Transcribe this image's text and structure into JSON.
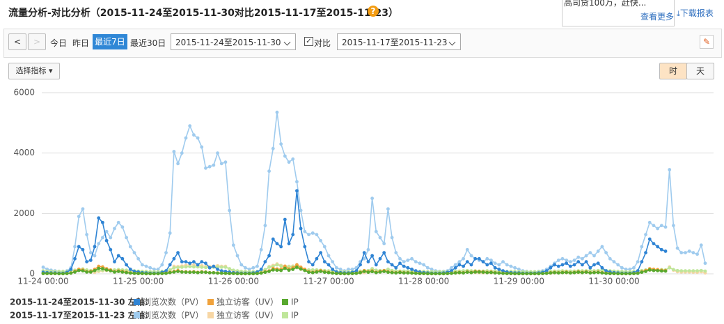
{
  "header": {
    "title": "流量分析-对比分析（2015-11-24至2015-11-30对比2015-11-17至2015-11-23）",
    "help": "?"
  },
  "promo": {
    "text": "高司贷100万，赶快...",
    "more": "查看更多",
    "download": "下载报表"
  },
  "toolbar": {
    "prev": "<",
    "next": ">",
    "today": "今日",
    "yesterday": "昨日",
    "last7": "最近7日",
    "last30": "最近30日",
    "range": "2015-11-24至2015-11-30",
    "compare_label": "对比",
    "compare_range": "2015-11-17至2015-11-23",
    "metrics": "选择指标",
    "hour": "时",
    "day": "天"
  },
  "chart_data": {
    "type": "line",
    "ylim": [
      0,
      6000
    ],
    "yticks": [
      0,
      2000,
      4000,
      6000
    ],
    "grid": true,
    "legend_groups": [
      "2015-11-24至2015-11-30 左轴：",
      "2015-11-17至2015-11-23 左轴："
    ],
    "categories": [
      "11-24 00:00",
      null,
      null,
      null,
      null,
      null,
      null,
      null,
      null,
      null,
      null,
      null,
      null,
      null,
      null,
      null,
      null,
      null,
      null,
      null,
      null,
      null,
      null,
      null,
      "11-25 00:00",
      null,
      null,
      null,
      null,
      null,
      null,
      null,
      null,
      null,
      null,
      null,
      null,
      null,
      null,
      null,
      null,
      null,
      null,
      null,
      null,
      null,
      null,
      null,
      "11-26 00:00",
      null,
      null,
      null,
      null,
      null,
      null,
      null,
      null,
      null,
      null,
      null,
      null,
      null,
      null,
      null,
      null,
      null,
      null,
      null,
      null,
      null,
      null,
      null,
      "11-27 00:00",
      null,
      null,
      null,
      null,
      null,
      null,
      null,
      null,
      null,
      null,
      null,
      null,
      null,
      null,
      null,
      null,
      null,
      null,
      null,
      null,
      null,
      null,
      null,
      "11-28 00:00",
      null,
      null,
      null,
      null,
      null,
      null,
      null,
      null,
      null,
      null,
      null,
      null,
      null,
      null,
      null,
      null,
      null,
      null,
      null,
      null,
      null,
      null,
      null,
      "11-29 00:00",
      null,
      null,
      null,
      null,
      null,
      null,
      null,
      null,
      null,
      null,
      null,
      null,
      null,
      null,
      null,
      null,
      null,
      null,
      null,
      null,
      null,
      null,
      null,
      "11-30 00:00",
      null,
      null,
      null,
      null,
      null,
      null,
      null,
      null,
      null,
      null,
      null,
      null,
      null,
      null,
      null,
      null,
      null,
      null,
      null,
      null,
      null,
      null,
      null
    ],
    "series": [
      {
        "name": "浏览次数（PV）",
        "color": "#2f84d4",
        "values": [
          50,
          40,
          30,
          30,
          20,
          20,
          50,
          150,
          500,
          900,
          800,
          400,
          450,
          900,
          1850,
          1700,
          1100,
          800,
          400,
          600,
          500,
          300,
          150,
          80,
          60,
          40,
          30,
          20,
          20,
          20,
          50,
          100,
          300,
          500,
          700,
          400,
          400,
          350,
          400,
          300,
          400,
          350,
          200,
          250,
          150,
          100,
          80,
          60,
          40,
          30,
          20,
          20,
          20,
          30,
          60,
          150,
          400,
          600,
          1150,
          1000,
          900,
          1800,
          1000,
          1300,
          2750,
          1500,
          900,
          400,
          300,
          500,
          700,
          400,
          300,
          150,
          60,
          40,
          30,
          30,
          50,
          100,
          300,
          700,
          400,
          600,
          300,
          500,
          700,
          400,
          300,
          200,
          350,
          250,
          200,
          150,
          100,
          60,
          40,
          30,
          20,
          20,
          20,
          30,
          50,
          100,
          200,
          300,
          250,
          400,
          300,
          500,
          500,
          400,
          300,
          350,
          200,
          150,
          100,
          60,
          40,
          30,
          30,
          20,
          20,
          20,
          20,
          30,
          50,
          100,
          200,
          300,
          250,
          300,
          350,
          250,
          300,
          400,
          300,
          400,
          200,
          300,
          350,
          200,
          100,
          60,
          40,
          30,
          20,
          20,
          20,
          40,
          100,
          400,
          700,
          1150,
          1000,
          900,
          800,
          750,
          null,
          null,
          null,
          null,
          null,
          null,
          null,
          null,
          null,
          null
        ]
      },
      {
        "name": "独立访客（UV）",
        "color": "#f0a23c",
        "values": [
          10,
          10,
          10,
          10,
          5,
          5,
          10,
          30,
          80,
          150,
          130,
          70,
          80,
          150,
          250,
          230,
          170,
          130,
          70,
          100,
          80,
          50,
          30,
          15,
          10,
          10,
          5,
          5,
          5,
          5,
          10,
          20,
          50,
          80,
          110,
          70,
          70,
          60,
          70,
          50,
          70,
          60,
          40,
          40,
          30,
          20,
          15,
          10,
          10,
          5,
          5,
          5,
          5,
          5,
          10,
          30,
          70,
          100,
          180,
          160,
          150,
          250,
          160,
          200,
          300,
          220,
          150,
          70,
          50,
          80,
          110,
          70,
          50,
          30,
          10,
          10,
          5,
          5,
          10,
          20,
          50,
          110,
          70,
          100,
          50,
          80,
          110,
          70,
          50,
          40,
          60,
          40,
          40,
          30,
          20,
          10,
          10,
          5,
          5,
          5,
          5,
          5,
          10,
          20,
          40,
          50,
          40,
          70,
          50,
          80,
          80,
          70,
          50,
          60,
          40,
          30,
          20,
          10,
          10,
          5,
          5,
          5,
          5,
          5,
          5,
          5,
          10,
          20,
          40,
          50,
          40,
          50,
          60,
          40,
          50,
          70,
          50,
          70,
          40,
          50,
          60,
          40,
          20,
          10,
          10,
          5,
          5,
          5,
          5,
          10,
          20,
          70,
          110,
          170,
          150,
          140,
          120,
          110,
          null,
          null,
          null,
          null,
          null,
          null,
          null,
          null,
          null,
          null
        ]
      },
      {
        "name": "IP",
        "color": "#58a82e",
        "values": [
          10,
          10,
          10,
          10,
          5,
          5,
          10,
          25,
          60,
          110,
          100,
          60,
          60,
          110,
          180,
          170,
          130,
          100,
          60,
          80,
          60,
          40,
          25,
          15,
          10,
          10,
          5,
          5,
          5,
          5,
          10,
          15,
          40,
          60,
          80,
          60,
          55,
          50,
          55,
          40,
          55,
          50,
          35,
          35,
          25,
          20,
          15,
          10,
          10,
          5,
          5,
          5,
          5,
          5,
          10,
          25,
          55,
          80,
          130,
          120,
          110,
          180,
          120,
          150,
          220,
          160,
          110,
          55,
          40,
          60,
          80,
          55,
          40,
          25,
          10,
          10,
          5,
          5,
          10,
          15,
          40,
          80,
          55,
          75,
          40,
          60,
          80,
          55,
          40,
          30,
          45,
          30,
          30,
          25,
          15,
          10,
          10,
          5,
          5,
          5,
          5,
          5,
          10,
          15,
          30,
          40,
          30,
          55,
          40,
          60,
          60,
          55,
          40,
          45,
          30,
          25,
          15,
          10,
          10,
          5,
          5,
          5,
          5,
          5,
          5,
          5,
          10,
          15,
          30,
          40,
          30,
          40,
          45,
          30,
          40,
          55,
          40,
          55,
          30,
          40,
          45,
          30,
          15,
          10,
          10,
          5,
          5,
          5,
          5,
          10,
          15,
          55,
          80,
          130,
          110,
          105,
          95,
          90,
          null,
          null,
          null,
          null,
          null,
          null,
          null,
          null,
          null,
          null
        ]
      },
      {
        "name": "浏览次数（PV）",
        "color": "#9fcbee",
        "values": [
          220,
          150,
          120,
          100,
          80,
          60,
          100,
          200,
          900,
          1900,
          2150,
          1300,
          700,
          600,
          1000,
          1200,
          1400,
          1200,
          1500,
          1700,
          1550,
          1200,
          900,
          700,
          500,
          300,
          250,
          200,
          150,
          150,
          300,
          700,
          1350,
          4050,
          3650,
          4000,
          4500,
          4900,
          4600,
          4500,
          4200,
          3500,
          3550,
          3600,
          4000,
          3650,
          3700,
          2100,
          950,
          600,
          300,
          200,
          150,
          200,
          250,
          800,
          1600,
          3400,
          4150,
          5350,
          4300,
          3900,
          3700,
          3800,
          3050,
          2100,
          1400,
          1300,
          1350,
          1300,
          1100,
          900,
          600,
          400,
          200,
          150,
          100,
          150,
          150,
          200,
          400,
          500,
          800,
          2500,
          1400,
          1200,
          1000,
          2150,
          1200,
          700,
          500,
          400,
          450,
          500,
          400,
          350,
          300,
          200,
          150,
          100,
          80,
          80,
          100,
          200,
          300,
          400,
          500,
          800,
          600,
          500,
          450,
          400,
          500,
          450,
          350,
          300,
          400,
          300,
          250,
          200,
          150,
          100,
          80,
          60,
          60,
          80,
          100,
          150,
          250,
          350,
          450,
          500,
          450,
          400,
          450,
          550,
          500,
          600,
          700,
          600,
          750,
          900,
          700,
          500,
          400,
          300,
          200,
          150,
          150,
          200,
          400,
          900,
          1300,
          1700,
          1600,
          1500,
          1600,
          1550,
          3450,
          1600,
          850,
          700,
          700,
          750,
          700,
          650,
          950,
          350
        ]
      },
      {
        "name": "独立访客（UV）",
        "color": "#f7d6a4",
        "values": [
          20,
          15,
          10,
          10,
          10,
          10,
          10,
          20,
          70,
          140,
          160,
          100,
          60,
          50,
          80,
          100,
          110,
          100,
          120,
          130,
          120,
          90,
          70,
          50,
          40,
          25,
          20,
          20,
          15,
          15,
          25,
          50,
          100,
          250,
          240,
          260,
          280,
          300,
          290,
          280,
          270,
          240,
          240,
          250,
          270,
          250,
          250,
          160,
          80,
          50,
          25,
          20,
          15,
          20,
          20,
          60,
          120,
          240,
          280,
          330,
          280,
          260,
          250,
          260,
          210,
          150,
          110,
          100,
          100,
          100,
          90,
          70,
          50,
          30,
          20,
          15,
          10,
          15,
          15,
          20,
          30,
          40,
          60,
          170,
          100,
          90,
          80,
          150,
          90,
          50,
          40,
          30,
          35,
          40,
          30,
          30,
          25,
          20,
          15,
          10,
          10,
          10,
          10,
          20,
          25,
          30,
          40,
          60,
          50,
          40,
          35,
          30,
          40,
          35,
          30,
          25,
          30,
          25,
          20,
          20,
          15,
          10,
          10,
          10,
          10,
          10,
          10,
          15,
          20,
          30,
          35,
          40,
          35,
          30,
          35,
          40,
          40,
          45,
          50,
          45,
          55,
          65,
          50,
          40,
          30,
          25,
          20,
          15,
          15,
          20,
          30,
          70,
          100,
          120,
          115,
          110,
          115,
          110,
          230,
          120,
          70,
          60,
          60,
          60,
          55,
          50,
          70,
          30
        ]
      },
      {
        "name": "IP",
        "color": "#bfe69a",
        "values": [
          100,
          90,
          80,
          80,
          80,
          80,
          80,
          100,
          120,
          150,
          160,
          130,
          110,
          100,
          110,
          120,
          130,
          120,
          130,
          140,
          130,
          120,
          110,
          100,
          90,
          80,
          80,
          70,
          70,
          70,
          80,
          100,
          130,
          200,
          210,
          220,
          230,
          240,
          230,
          230,
          220,
          210,
          210,
          220,
          230,
          220,
          220,
          170,
          120,
          100,
          80,
          80,
          70,
          70,
          80,
          100,
          140,
          220,
          250,
          300,
          260,
          240,
          230,
          240,
          200,
          160,
          140,
          130,
          130,
          130,
          120,
          110,
          100,
          90,
          80,
          70,
          70,
          70,
          70,
          80,
          90,
          100,
          110,
          170,
          120,
          110,
          110,
          150,
          110,
          100,
          90,
          90,
          90,
          90,
          80,
          80,
          80,
          70,
          70,
          70,
          70,
          70,
          70,
          80,
          90,
          90,
          100,
          110,
          100,
          100,
          90,
          90,
          100,
          90,
          90,
          80,
          90,
          80,
          80,
          80,
          70,
          70,
          70,
          70,
          70,
          70,
          70,
          80,
          80,
          90,
          90,
          100,
          90,
          90,
          90,
          100,
          100,
          100,
          110,
          100,
          110,
          120,
          110,
          100,
          90,
          80,
          80,
          70,
          70,
          80,
          90,
          110,
          130,
          140,
          140,
          130,
          140,
          130,
          200,
          140,
          110,
          100,
          100,
          100,
          100,
          100,
          110,
          90
        ]
      }
    ]
  }
}
